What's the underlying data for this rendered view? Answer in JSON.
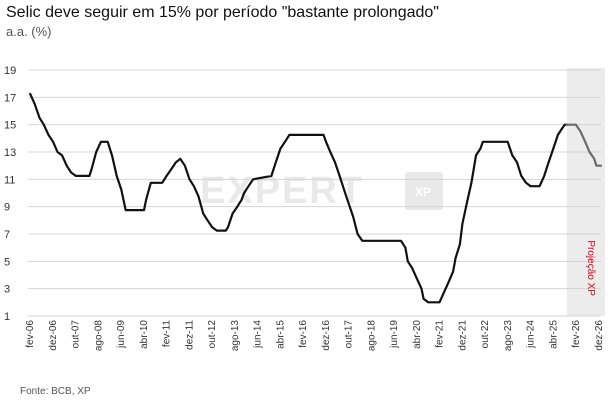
{
  "header": {
    "title": "Selic deve seguir em 15% por período \"bastante prolongado\"",
    "subtitle": "a.a. (%)"
  },
  "footer": {
    "source": "Fonte: BCB, XP"
  },
  "watermark": {
    "text": "EXPERT",
    "badge": "XP"
  },
  "projection": {
    "label": "Projeção XP",
    "start": 2025.75,
    "end": 2027.0
  },
  "colors": {
    "line": "#111111",
    "projection_line": "#6b6b6b",
    "projection_band": "#ececec",
    "grid": "#d4d4d4",
    "projection_label": "#d0021b"
  },
  "chart_data": {
    "type": "line",
    "title": "Selic deve seguir em 15% por período \"bastante prolongado\"",
    "ylabel": "a.a. (%)",
    "ylim": [
      1,
      19
    ],
    "yticks": [
      1,
      3,
      5,
      7,
      9,
      11,
      13,
      15,
      17,
      19
    ],
    "xlim": [
      2006.0,
      2027.0
    ],
    "grid": "horizontal",
    "x_tick_labels": [
      "fev-06",
      "dez-06",
      "out-07",
      "ago-08",
      "jun-09",
      "abr-10",
      "fev-11",
      "dez-11",
      "out-12",
      "ago-13",
      "jun-14",
      "abr-15",
      "fev-16",
      "dez-16",
      "out-17",
      "ago-18",
      "jun-19",
      "abr-20",
      "fev-21",
      "dez-21",
      "out-22",
      "ago-23",
      "jun-24",
      "abr-25",
      "fev-26",
      "dez-26"
    ],
    "series": [
      {
        "values": [
          [
            2006.08,
            17.25
          ],
          [
            2006.25,
            16.5
          ],
          [
            2006.42,
            15.5
          ],
          [
            2006.58,
            15.0
          ],
          [
            2006.75,
            14.25
          ],
          [
            2006.92,
            13.75
          ],
          [
            2007.08,
            13.0
          ],
          [
            2007.25,
            12.75
          ],
          [
            2007.42,
            12.0
          ],
          [
            2007.58,
            11.5
          ],
          [
            2007.75,
            11.25
          ],
          [
            2007.92,
            11.25
          ],
          [
            2008.25,
            11.25
          ],
          [
            2008.33,
            11.75
          ],
          [
            2008.5,
            13.0
          ],
          [
            2008.67,
            13.75
          ],
          [
            2008.92,
            13.75
          ],
          [
            2009.08,
            12.75
          ],
          [
            2009.25,
            11.25
          ],
          [
            2009.42,
            10.25
          ],
          [
            2009.58,
            8.75
          ],
          [
            2009.92,
            8.75
          ],
          [
            2010.25,
            8.75
          ],
          [
            2010.33,
            9.5
          ],
          [
            2010.5,
            10.75
          ],
          [
            2010.92,
            10.75
          ],
          [
            2011.08,
            11.25
          ],
          [
            2011.25,
            11.75
          ],
          [
            2011.42,
            12.25
          ],
          [
            2011.58,
            12.5
          ],
          [
            2011.75,
            12.0
          ],
          [
            2011.92,
            11.0
          ],
          [
            2012.08,
            10.5
          ],
          [
            2012.25,
            9.75
          ],
          [
            2012.42,
            8.5
          ],
          [
            2012.58,
            8.0
          ],
          [
            2012.75,
            7.5
          ],
          [
            2012.92,
            7.25
          ],
          [
            2013.25,
            7.25
          ],
          [
            2013.33,
            7.5
          ],
          [
            2013.5,
            8.5
          ],
          [
            2013.67,
            9.0
          ],
          [
            2013.83,
            9.5
          ],
          [
            2013.92,
            10.0
          ],
          [
            2014.08,
            10.5
          ],
          [
            2014.25,
            11.0
          ],
          [
            2014.92,
            11.25
          ],
          [
            2015.08,
            12.25
          ],
          [
            2015.25,
            13.25
          ],
          [
            2015.42,
            13.75
          ],
          [
            2015.58,
            14.25
          ],
          [
            2016.83,
            14.25
          ],
          [
            2016.92,
            13.75
          ],
          [
            2017.08,
            13.0
          ],
          [
            2017.25,
            12.25
          ],
          [
            2017.42,
            11.25
          ],
          [
            2017.58,
            10.25
          ],
          [
            2017.75,
            9.25
          ],
          [
            2017.92,
            8.25
          ],
          [
            2018.08,
            7.0
          ],
          [
            2018.25,
            6.5
          ],
          [
            2019.67,
            6.5
          ],
          [
            2019.83,
            6.0
          ],
          [
            2019.92,
            5.0
          ],
          [
            2020.08,
            4.5
          ],
          [
            2020.25,
            3.75
          ],
          [
            2020.42,
            3.0
          ],
          [
            2020.5,
            2.25
          ],
          [
            2020.67,
            2.0
          ],
          [
            2021.08,
            2.0
          ],
          [
            2021.25,
            2.75
          ],
          [
            2021.42,
            3.5
          ],
          [
            2021.58,
            4.25
          ],
          [
            2021.67,
            5.25
          ],
          [
            2021.83,
            6.25
          ],
          [
            2021.92,
            7.75
          ],
          [
            2022.08,
            9.25
          ],
          [
            2022.25,
            10.75
          ],
          [
            2022.42,
            12.75
          ],
          [
            2022.58,
            13.25
          ],
          [
            2022.67,
            13.75
          ],
          [
            2023.58,
            13.75
          ],
          [
            2023.75,
            12.75
          ],
          [
            2023.92,
            12.25
          ],
          [
            2024.08,
            11.25
          ],
          [
            2024.25,
            10.75
          ],
          [
            2024.42,
            10.5
          ],
          [
            2024.75,
            10.5
          ],
          [
            2024.92,
            11.25
          ],
          [
            2025.08,
            12.25
          ],
          [
            2025.25,
            13.25
          ],
          [
            2025.42,
            14.25
          ],
          [
            2025.58,
            14.75
          ],
          [
            2025.67,
            15.0
          ],
          [
            2025.75,
            15.0
          ]
        ]
      },
      {
        "values": [
          [
            2025.75,
            15.0
          ],
          [
            2026.08,
            15.0
          ],
          [
            2026.25,
            14.5
          ],
          [
            2026.42,
            13.75
          ],
          [
            2026.58,
            13.0
          ],
          [
            2026.75,
            12.5
          ],
          [
            2026.83,
            12.0
          ],
          [
            2027.0,
            12.0
          ]
        ]
      }
    ]
  }
}
